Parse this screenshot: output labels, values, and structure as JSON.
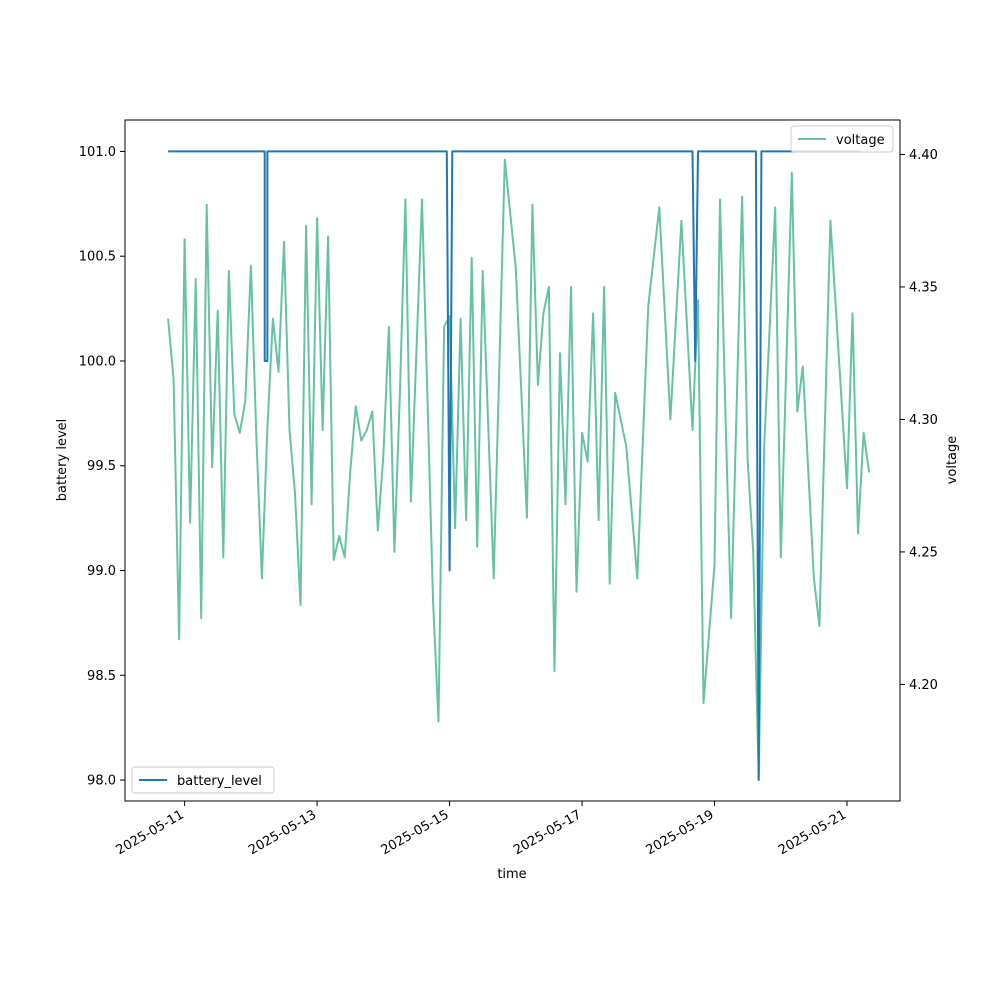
{
  "chart_data": {
    "type": "line",
    "xlabel": "time",
    "x_ticks": [
      "2025-05-11",
      "2025-05-13",
      "2025-05-15",
      "2025-05-17",
      "2025-05-19",
      "2025-05-21"
    ],
    "left_axis": {
      "label": "battery level",
      "ylim": [
        97.9,
        101.15
      ],
      "ticks": [
        "98.0",
        "98.5",
        "99.0",
        "99.5",
        "100.0",
        "100.5",
        "101.0"
      ]
    },
    "right_axis": {
      "label": "voltage",
      "ylim": [
        4.156,
        4.413
      ],
      "ticks": [
        "4.20",
        "4.25",
        "4.30",
        "4.35",
        "4.40"
      ]
    },
    "xlim": [
      "2025-05-10T02:24",
      "2025-05-21T19:12"
    ],
    "series": [
      {
        "name": "battery_level",
        "axis": "left",
        "color": "#1f77b4",
        "legend": "lower-left",
        "x": [
          "2025-05-10T18:00",
          "2025-05-12T05:00",
          "2025-05-12T05:00",
          "2025-05-12T05:00",
          "2025-05-12T06:00",
          "2025-05-12T06:00",
          "2025-05-12T06:00",
          "2025-05-14T23:00",
          "2025-05-15T00:00",
          "2025-05-15T01:00",
          "2025-05-18T16:00",
          "2025-05-18T17:00",
          "2025-05-18T18:00",
          "2025-05-19T15:00",
          "2025-05-19T16:00",
          "2025-05-19T17:00",
          "2025-05-21T05:00"
        ],
        "y": [
          101,
          101,
          100,
          100,
          100,
          101,
          101,
          101,
          99,
          101,
          101,
          100,
          101,
          101,
          98,
          101,
          101
        ]
      },
      {
        "name": "voltage",
        "axis": "right",
        "color": "#66c2a5",
        "legend": "upper-right",
        "x": [
          "2025-05-10T18:00",
          "2025-05-10T20:00",
          "2025-05-10T22:00",
          "2025-05-11T00:00",
          "2025-05-11T02:00",
          "2025-05-11T04:00",
          "2025-05-11T06:00",
          "2025-05-11T08:00",
          "2025-05-11T10:00",
          "2025-05-11T12:00",
          "2025-05-11T14:00",
          "2025-05-11T16:00",
          "2025-05-11T18:00",
          "2025-05-11T20:00",
          "2025-05-11T22:00",
          "2025-05-12T00:00",
          "2025-05-12T02:00",
          "2025-05-12T04:00",
          "2025-05-12T06:00",
          "2025-05-12T08:00",
          "2025-05-12T10:00",
          "2025-05-12T12:00",
          "2025-05-12T14:00",
          "2025-05-12T16:00",
          "2025-05-12T18:00",
          "2025-05-12T20:00",
          "2025-05-12T22:00",
          "2025-05-13T00:00",
          "2025-05-13T02:00",
          "2025-05-13T04:00",
          "2025-05-13T06:00",
          "2025-05-13T08:00",
          "2025-05-13T10:00",
          "2025-05-13T12:00",
          "2025-05-13T14:00",
          "2025-05-13T16:00",
          "2025-05-13T18:00",
          "2025-05-13T20:00",
          "2025-05-13T22:00",
          "2025-05-14T00:00",
          "2025-05-14T02:00",
          "2025-05-14T04:00",
          "2025-05-14T06:00",
          "2025-05-14T08:00",
          "2025-05-14T10:00",
          "2025-05-14T14:00",
          "2025-05-14T18:00",
          "2025-05-14T20:00",
          "2025-05-14T22:00",
          "2025-05-15T00:00",
          "2025-05-15T02:00",
          "2025-05-15T04:00",
          "2025-05-15T06:00",
          "2025-05-15T08:00",
          "2025-05-15T10:00",
          "2025-05-15T12:00",
          "2025-05-15T16:00",
          "2025-05-15T20:00",
          "2025-05-16T00:00",
          "2025-05-16T04:00",
          "2025-05-16T06:00",
          "2025-05-16T08:00",
          "2025-05-16T10:00",
          "2025-05-16T12:00",
          "2025-05-16T14:00",
          "2025-05-16T16:00",
          "2025-05-16T18:00",
          "2025-05-16T20:00",
          "2025-05-16T22:00",
          "2025-05-17T00:00",
          "2025-05-17T02:00",
          "2025-05-17T04:00",
          "2025-05-17T06:00",
          "2025-05-17T08:00",
          "2025-05-17T10:00",
          "2025-05-17T12:00",
          "2025-05-17T16:00",
          "2025-05-17T20:00",
          "2025-05-18T00:00",
          "2025-05-18T04:00",
          "2025-05-18T08:00",
          "2025-05-18T12:00",
          "2025-05-18T16:00",
          "2025-05-18T18:00",
          "2025-05-18T20:00",
          "2025-05-19T00:00",
          "2025-05-19T02:00",
          "2025-05-19T04:00",
          "2025-05-19T06:00",
          "2025-05-19T10:00",
          "2025-05-19T12:00",
          "2025-05-19T14:00",
          "2025-05-19T16:00",
          "2025-05-19T18:00",
          "2025-05-19T22:00",
          "2025-05-20T00:00",
          "2025-05-20T04:00",
          "2025-05-20T06:00",
          "2025-05-20T08:00",
          "2025-05-20T12:00",
          "2025-05-20T14:00",
          "2025-05-20T18:00",
          "2025-05-21T00:00",
          "2025-05-21T02:00",
          "2025-05-21T04:00",
          "2025-05-21T06:00",
          "2025-05-21T08:00"
        ],
        "y": [
          4.338,
          4.315,
          4.217,
          4.368,
          4.261,
          4.353,
          4.225,
          4.381,
          4.282,
          4.341,
          4.248,
          4.356,
          4.302,
          4.295,
          4.307,
          4.358,
          4.293,
          4.24,
          4.297,
          4.338,
          4.318,
          4.367,
          4.296,
          4.272,
          4.23,
          4.373,
          4.268,
          4.376,
          4.296,
          4.369,
          4.247,
          4.256,
          4.248,
          4.28,
          4.305,
          4.292,
          4.296,
          4.303,
          4.258,
          4.286,
          4.335,
          4.25,
          4.31,
          4.383,
          4.269,
          4.383,
          4.232,
          4.186,
          4.335,
          4.339,
          4.259,
          4.338,
          4.262,
          4.361,
          4.252,
          4.356,
          4.24,
          4.398,
          4.357,
          4.263,
          4.381,
          4.313,
          4.34,
          4.35,
          4.205,
          4.325,
          4.268,
          4.35,
          4.235,
          4.295,
          4.284,
          4.34,
          4.262,
          4.35,
          4.238,
          4.31,
          4.29,
          4.24,
          4.343,
          4.38,
          4.3,
          4.375,
          4.296,
          4.345,
          4.193,
          4.245,
          4.383,
          4.3,
          4.225,
          4.384,
          4.285,
          4.25,
          4.165,
          4.29,
          4.38,
          4.248,
          4.393,
          4.303,
          4.32,
          4.24,
          4.222,
          4.375,
          4.274,
          4.34,
          4.257,
          4.295,
          4.28
        ]
      }
    ]
  }
}
